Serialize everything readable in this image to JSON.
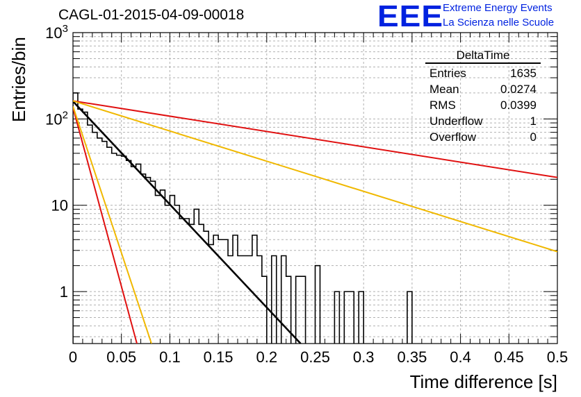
{
  "title": "CAGL-01-2015-04-09-00018",
  "logo": {
    "mark": "EEE",
    "line1": "Extreme Energy Events",
    "line2": "La Scienza nelle Scuole",
    "color": "#0022e0"
  },
  "stats_box": {
    "title": "DeltaTime",
    "rows": [
      {
        "label": "Entries",
        "value": "1635"
      },
      {
        "label": "Mean",
        "value": "0.0274"
      },
      {
        "label": "RMS",
        "value": "0.0399"
      },
      {
        "label": "Underflow",
        "value": "1"
      },
      {
        "label": "Overflow",
        "value": "0"
      }
    ]
  },
  "chart_data": {
    "type": "line",
    "xlabel": "Time difference [s]",
    "ylabel": "Entries/bin",
    "xlim": [
      0,
      0.5
    ],
    "ylim": [
      0.25,
      1000
    ],
    "yscale": "log",
    "grid": true,
    "x_ticks": [
      "0",
      "0.05",
      "0.1",
      "0.15",
      "0.2",
      "0.25",
      "0.3",
      "0.35",
      "0.4",
      "0.45",
      "0.5"
    ],
    "y_ticks": [
      "1",
      "10",
      "10^2",
      "10^3"
    ],
    "histogram": {
      "name": "DeltaTime",
      "bin_width": 0.005,
      "color": "#000000",
      "values": [
        200,
        130,
        120,
        85,
        70,
        60,
        55,
        47,
        40,
        38,
        37,
        33,
        28,
        30,
        23,
        21,
        19,
        13,
        15,
        10,
        13,
        10,
        7,
        7,
        6,
        9,
        6,
        5,
        3.5,
        4.5,
        4,
        4,
        2.6,
        4.5,
        2.6,
        2.6,
        2.6,
        4.5,
        2.6,
        1.5,
        0,
        2.6,
        0.01,
        2.6,
        1.5,
        0.01,
        1.5,
        1.5,
        0.01,
        0.01,
        2,
        0.01,
        0,
        0,
        1.0,
        0,
        1.0,
        1.0,
        0,
        1.0,
        0,
        0,
        0,
        0,
        0,
        0,
        0,
        0,
        0,
        1.0,
        0,
        0,
        0,
        0,
        0,
        0,
        0,
        0,
        0,
        0,
        0,
        0,
        0,
        0,
        0,
        0,
        0,
        0,
        0,
        0,
        0,
        0,
        0,
        0,
        0,
        0,
        0,
        0,
        0,
        0
      ]
    },
    "fits": [
      {
        "color": "#000000",
        "x": [
          0,
          0.235
        ],
        "y": [
          160,
          0.25
        ]
      },
      {
        "color": "#e01010",
        "x": [
          0,
          0.5
        ],
        "y": [
          162,
          21
        ]
      },
      {
        "color": "#f0b800",
        "x": [
          0,
          0.5
        ],
        "y": [
          162,
          2.9
        ]
      },
      {
        "color": "#e01010",
        "x": [
          0,
          0.066
        ],
        "y": [
          135,
          0.25
        ]
      },
      {
        "color": "#f0b800",
        "x": [
          0,
          0.081
        ],
        "y": [
          140,
          0.25
        ]
      }
    ]
  }
}
